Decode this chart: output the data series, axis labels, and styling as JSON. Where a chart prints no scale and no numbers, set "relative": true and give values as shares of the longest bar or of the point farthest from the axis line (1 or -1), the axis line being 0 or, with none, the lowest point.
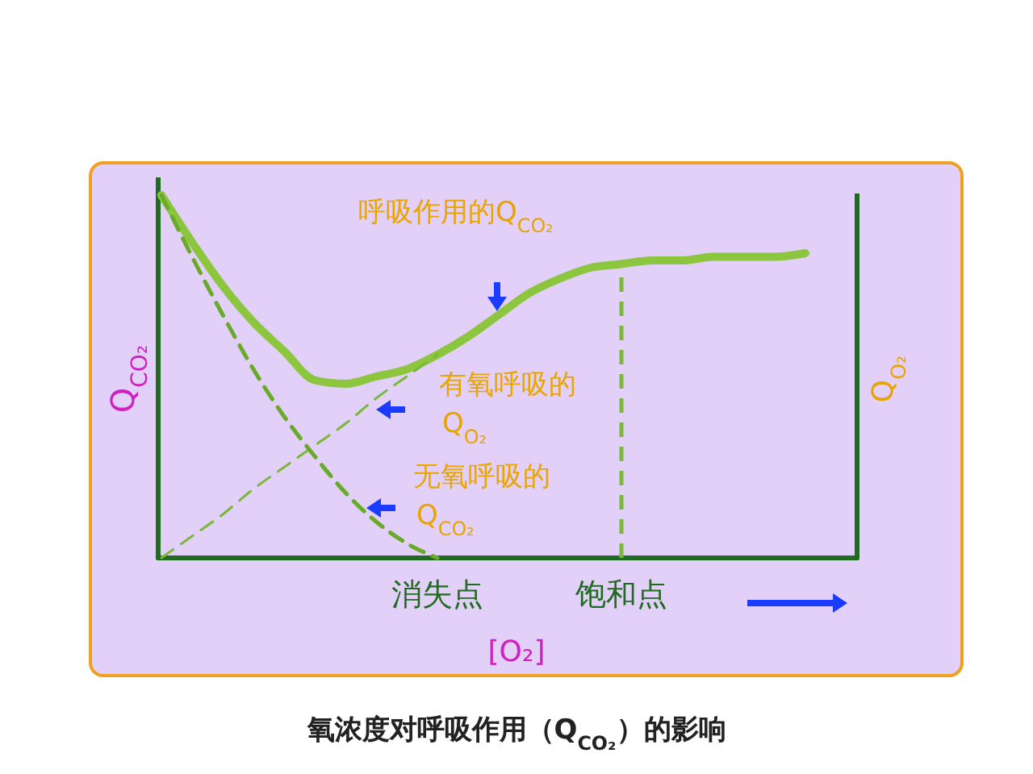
{
  "chart_data": {
    "type": "line",
    "relative": true,
    "title": "氧浓度对呼吸作用（Q$_{CO₂}$）的影响",
    "xlabel": "[O₂]",
    "ylabel": "Q$_{CO₂}$",
    "y2label": "Q$_{O₂}$",
    "categories": [
      null,
      null,
      null,
      null,
      null,
      null,
      null,
      null,
      null,
      "消失点",
      null,
      null,
      null,
      null,
      null,
      "饱和点",
      null,
      null,
      null,
      null,
      null,
      null
    ],
    "series": [
      {
        "name": "呼吸作用的Q$_{CO₂}$",
        "color": "#8cc63f",
        "line_style": "solid",
        "values": [
          1.0,
          0.87,
          0.75,
          0.65,
          0.57,
          0.49,
          0.48,
          0.5,
          0.52,
          0.56,
          0.61,
          0.67,
          0.73,
          0.77,
          0.8,
          0.81,
          0.82,
          0.82,
          0.83,
          0.83,
          0.83,
          0.84
        ]
      },
      {
        "name": "有氧呼吸的Q$_{O₂}$",
        "color": "#7ab83a",
        "line_style": "dashed",
        "values": [
          0,
          0.06,
          0.12,
          0.19,
          0.25,
          0.31,
          0.37,
          0.44,
          0.5,
          0.56,
          null,
          null,
          null,
          null,
          null,
          null,
          null,
          null,
          null,
          null,
          null,
          null
        ]
      },
      {
        "name": "无氧呼吸的Q$_{CO₂}$",
        "color": "#6aaa2a",
        "line_style": "dashed",
        "values": [
          1.0,
          0.83,
          0.67,
          0.52,
          0.39,
          0.28,
          0.18,
          0.1,
          0.04,
          0,
          null,
          null,
          null,
          null,
          null,
          null,
          null,
          null,
          null,
          null,
          null,
          null
        ]
      }
    ],
    "ref_lines": [
      {
        "axis": "x",
        "value": "饱和点",
        "color": "#7ab83a",
        "line_style": "dashed"
      }
    ]
  }
}
